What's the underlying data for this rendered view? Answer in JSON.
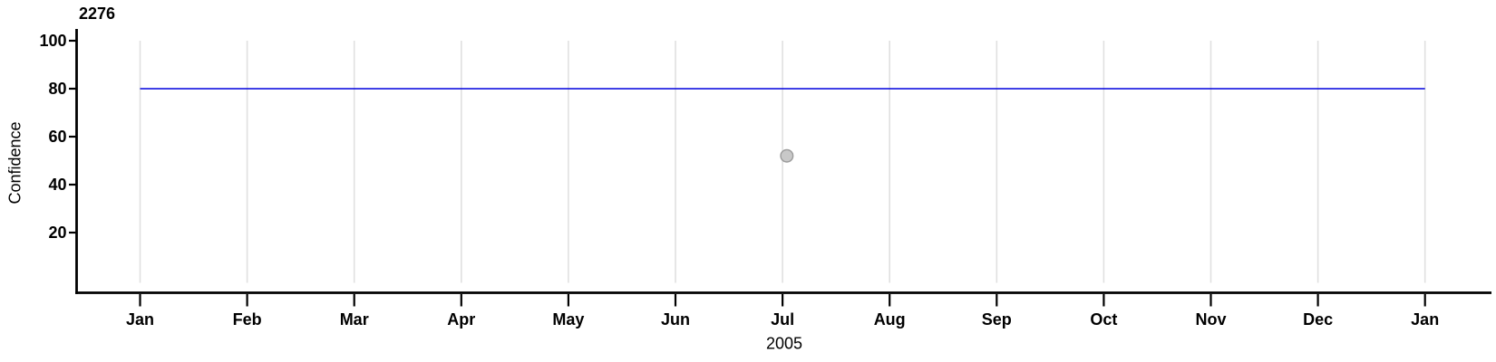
{
  "chart_data": {
    "type": "line",
    "title": "2276",
    "xlabel": "2005",
    "ylabel": "Confidence",
    "x_tick_labels": [
      "Jan",
      "Feb",
      "Mar",
      "Apr",
      "May",
      "Jun",
      "Jul",
      "Aug",
      "Sep",
      "Oct",
      "Nov",
      "Dec",
      "Jan"
    ],
    "x_range_months": 12,
    "y_ticks": [
      20,
      40,
      60,
      80,
      100
    ],
    "ylim": [
      -5,
      105
    ],
    "grid": {
      "vertical": true,
      "horizontal": false,
      "color": "#e0e0e0"
    },
    "legend": "none",
    "series": [
      {
        "name": "confidence-level-line",
        "type": "line",
        "color": "#0000dd",
        "y_value": 80,
        "x_start_month": 0,
        "x_end_month": 12
      },
      {
        "name": "observed-confidence-point",
        "type": "scatter",
        "marker": "circle",
        "fill": "#c8c8c8",
        "stroke": "#9b9b9b",
        "points": [
          {
            "month_index": 6.04,
            "nearest_x_label": "Jul",
            "y_value": 52
          }
        ]
      }
    ],
    "colors": {
      "axis": "#000000",
      "text": "#000000",
      "background": "#ffffff"
    }
  }
}
